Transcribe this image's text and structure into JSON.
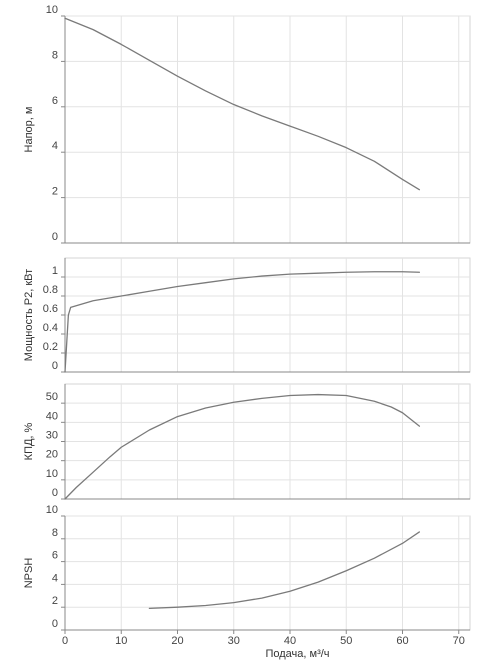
{
  "chart_data": [
    {
      "type": "line",
      "ylabel": "Напор, м",
      "xlim": [
        0,
        72
      ],
      "ylim": [
        0,
        10
      ],
      "yticks": [
        0,
        2,
        4,
        6,
        8,
        10
      ],
      "grid": true,
      "series": [
        {
          "x": [
            0,
            5,
            10,
            15,
            20,
            25,
            30,
            35,
            40,
            45,
            50,
            55,
            60,
            63
          ],
          "y": [
            9.9,
            9.4,
            8.75,
            8.05,
            7.35,
            6.7,
            6.1,
            5.6,
            5.15,
            4.7,
            4.2,
            3.6,
            2.8,
            2.35
          ]
        }
      ]
    },
    {
      "type": "line",
      "ylabel": "Мощность P2, кВт",
      "xlim": [
        0,
        72
      ],
      "ylim": [
        0,
        1.2
      ],
      "yticks": [
        0,
        0.2,
        0.4,
        0.6,
        0.8,
        1
      ],
      "grid": true,
      "series": [
        {
          "x": [
            0,
            0.3,
            0.6,
            1,
            5,
            10,
            15,
            20,
            25,
            30,
            35,
            40,
            45,
            50,
            55,
            60,
            63
          ],
          "y": [
            0,
            0.3,
            0.6,
            0.68,
            0.75,
            0.8,
            0.85,
            0.9,
            0.94,
            0.98,
            1.01,
            1.03,
            1.04,
            1.05,
            1.055,
            1.055,
            1.05
          ]
        }
      ]
    },
    {
      "type": "line",
      "ylabel": "КПД, %",
      "xlim": [
        0,
        72
      ],
      "ylim": [
        0,
        60
      ],
      "yticks": [
        0,
        10,
        20,
        30,
        40,
        50
      ],
      "grid": true,
      "series": [
        {
          "x": [
            0,
            2,
            5,
            8,
            10,
            15,
            20,
            25,
            30,
            35,
            40,
            45,
            50,
            55,
            58,
            60,
            63
          ],
          "y": [
            0,
            6,
            14,
            22,
            27,
            36,
            43,
            47.5,
            50.5,
            52.5,
            54,
            54.5,
            54,
            51,
            48,
            45,
            38
          ]
        }
      ]
    },
    {
      "type": "line",
      "ylabel": "NPSH",
      "xlabel": "Подача, м³/ч",
      "xlim": [
        0,
        72
      ],
      "ylim": [
        0,
        10
      ],
      "xticks": [
        0,
        10,
        20,
        30,
        40,
        50,
        60,
        70
      ],
      "yticks": [
        0,
        2,
        4,
        6,
        8,
        10
      ],
      "grid": true,
      "series": [
        {
          "x": [
            15,
            20,
            25,
            30,
            35,
            40,
            45,
            50,
            55,
            60,
            63
          ],
          "y": [
            1.9,
            2.0,
            2.15,
            2.4,
            2.8,
            3.4,
            4.2,
            5.2,
            6.3,
            7.6,
            8.6
          ]
        }
      ]
    }
  ]
}
